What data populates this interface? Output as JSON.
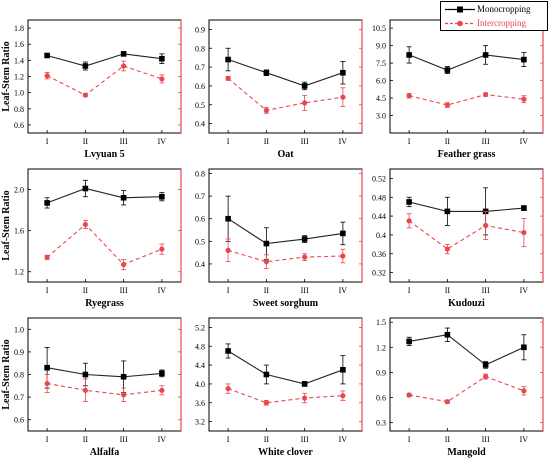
{
  "colors": {
    "monocropping": "#000000",
    "intercropping": "#e8474e",
    "right_axis": "#e8474e"
  },
  "legend": {
    "placement": "top-right",
    "entries": [
      {
        "name": "Monocropping",
        "color": "#000000",
        "marker": "square",
        "line": "solid"
      },
      {
        "name": "Intercropping",
        "color": "#e8474e",
        "marker": "circle",
        "line": "dashed"
      }
    ]
  },
  "chart_data": [
    {
      "type": "line",
      "xlabel": "Lvyuan 5",
      "ylabel": "Leaf-Stem Ratio",
      "categories": [
        "I",
        "II",
        "III",
        "IV"
      ],
      "ylim": [
        0.5,
        1.9
      ],
      "yticks": [
        0.6,
        0.8,
        1.0,
        1.2,
        1.4,
        1.6,
        1.8
      ],
      "series": [
        {
          "name": "Monocropping",
          "values": [
            1.46,
            1.33,
            1.48,
            1.42
          ],
          "errors": [
            0.02,
            0.05,
            0.02,
            0.06
          ]
        },
        {
          "name": "Intercropping",
          "values": [
            1.21,
            0.97,
            1.33,
            1.17
          ],
          "errors": [
            0.04,
            0.02,
            0.06,
            0.05
          ]
        }
      ]
    },
    {
      "type": "line",
      "xlabel": "Oat",
      "ylabel": "",
      "categories": [
        "I",
        "II",
        "III",
        "IV"
      ],
      "ylim": [
        0.35,
        0.95
      ],
      "yticks": [
        0.4,
        0.5,
        0.6,
        0.7,
        0.8,
        0.9
      ],
      "series": [
        {
          "name": "Monocropping",
          "values": [
            0.74,
            0.67,
            0.6,
            0.67
          ],
          "errors": [
            0.06,
            0.015,
            0.02,
            0.06
          ]
        },
        {
          "name": "Intercropping",
          "values": [
            0.64,
            0.47,
            0.51,
            0.54
          ],
          "errors": [
            0.01,
            0.015,
            0.04,
            0.05
          ]
        }
      ]
    },
    {
      "type": "line",
      "xlabel": "Feather grass",
      "ylabel": "",
      "categories": [
        "I",
        "II",
        "III",
        "IV"
      ],
      "ylim": [
        1.5,
        11.2
      ],
      "yticks": [
        3.0,
        4.5,
        6.0,
        7.5,
        9.0,
        10.5
      ],
      "series": [
        {
          "name": "Monocropping",
          "values": [
            8.2,
            6.9,
            8.2,
            7.8
          ],
          "errors": [
            0.7,
            0.3,
            0.8,
            0.6
          ]
        },
        {
          "name": "Intercropping",
          "values": [
            4.7,
            3.9,
            4.8,
            4.4
          ],
          "errors": [
            0.2,
            0.2,
            0.15,
            0.3
          ]
        }
      ]
    },
    {
      "type": "line",
      "xlabel": "Ryegrass",
      "ylabel": "Leaf-Stem Ratio",
      "categories": [
        "I",
        "II",
        "III",
        "IV"
      ],
      "ylim": [
        1.1,
        2.2
      ],
      "yticks": [
        1.2,
        1.6,
        2.0
      ],
      "series": [
        {
          "name": "Monocropping",
          "values": [
            1.87,
            2.01,
            1.92,
            1.93
          ],
          "errors": [
            0.05,
            0.08,
            0.07,
            0.04
          ]
        },
        {
          "name": "Intercropping",
          "values": [
            1.34,
            1.66,
            1.27,
            1.42
          ],
          "errors": [
            0.02,
            0.04,
            0.05,
            0.05
          ]
        }
      ]
    },
    {
      "type": "line",
      "xlabel": "Sweet sorghum",
      "ylabel": "",
      "categories": [
        "I",
        "II",
        "III",
        "IV"
      ],
      "ylim": [
        0.32,
        0.82
      ],
      "yticks": [
        0.4,
        0.5,
        0.6,
        0.7,
        0.8
      ],
      "series": [
        {
          "name": "Monocropping",
          "values": [
            0.6,
            0.49,
            0.51,
            0.535
          ],
          "errors": [
            0.1,
            0.07,
            0.015,
            0.05
          ]
        },
        {
          "name": "Intercropping",
          "values": [
            0.46,
            0.41,
            0.43,
            0.435
          ],
          "errors": [
            0.05,
            0.03,
            0.015,
            0.03
          ]
        }
      ]
    },
    {
      "type": "line",
      "xlabel": "Kudouzi",
      "ylabel": "",
      "categories": [
        "I",
        "II",
        "III",
        "IV"
      ],
      "ylim": [
        0.3,
        0.54
      ],
      "yticks": [
        0.32,
        0.36,
        0.4,
        0.44,
        0.48,
        0.52
      ],
      "series": [
        {
          "name": "Monocropping",
          "values": [
            0.47,
            0.45,
            0.45,
            0.457
          ],
          "errors": [
            0.01,
            0.03,
            0.05,
            0.005
          ]
        },
        {
          "name": "Intercropping",
          "values": [
            0.43,
            0.37,
            0.42,
            0.405
          ],
          "errors": [
            0.015,
            0.01,
            0.03,
            0.03
          ]
        }
      ]
    },
    {
      "type": "line",
      "xlabel": "Alfalfa",
      "ylabel": "Leaf-Stem Ratio",
      "categories": [
        "I",
        "II",
        "III",
        "IV"
      ],
      "ylim": [
        0.55,
        1.05
      ],
      "yticks": [
        0.6,
        0.7,
        0.8,
        0.9,
        1.0
      ],
      "series": [
        {
          "name": "Monocropping",
          "values": [
            0.83,
            0.8,
            0.79,
            0.805
          ],
          "errors": [
            0.09,
            0.05,
            0.07,
            0.015
          ]
        },
        {
          "name": "Intercropping",
          "values": [
            0.76,
            0.73,
            0.71,
            0.73
          ],
          "errors": [
            0.04,
            0.05,
            0.03,
            0.02
          ]
        }
      ]
    },
    {
      "type": "line",
      "xlabel": "White clover",
      "ylabel": "",
      "categories": [
        "I",
        "II",
        "III",
        "IV"
      ],
      "ylim": [
        3.0,
        5.4
      ],
      "yticks": [
        3.2,
        3.6,
        4.0,
        4.4,
        4.8,
        5.2
      ],
      "series": [
        {
          "name": "Monocropping",
          "values": [
            4.7,
            4.2,
            4.0,
            4.3
          ],
          "errors": [
            0.15,
            0.2,
            0.05,
            0.3
          ]
        },
        {
          "name": "Intercropping",
          "values": [
            3.9,
            3.6,
            3.7,
            3.75
          ],
          "errors": [
            0.1,
            0.05,
            0.1,
            0.1
          ]
        }
      ]
    },
    {
      "type": "line",
      "xlabel": "Mangold",
      "ylabel": "",
      "categories": [
        "I",
        "II",
        "III",
        "IV"
      ],
      "ylim": [
        0.2,
        1.55
      ],
      "yticks": [
        0.3,
        0.6,
        0.9,
        1.2,
        1.5
      ],
      "series": [
        {
          "name": "Monocropping",
          "values": [
            1.27,
            1.35,
            0.99,
            1.2
          ],
          "errors": [
            0.05,
            0.08,
            0.04,
            0.15
          ]
        },
        {
          "name": "Intercropping",
          "values": [
            0.63,
            0.55,
            0.85,
            0.68
          ],
          "errors": [
            0.02,
            0.02,
            0.03,
            0.05
          ]
        }
      ]
    }
  ]
}
